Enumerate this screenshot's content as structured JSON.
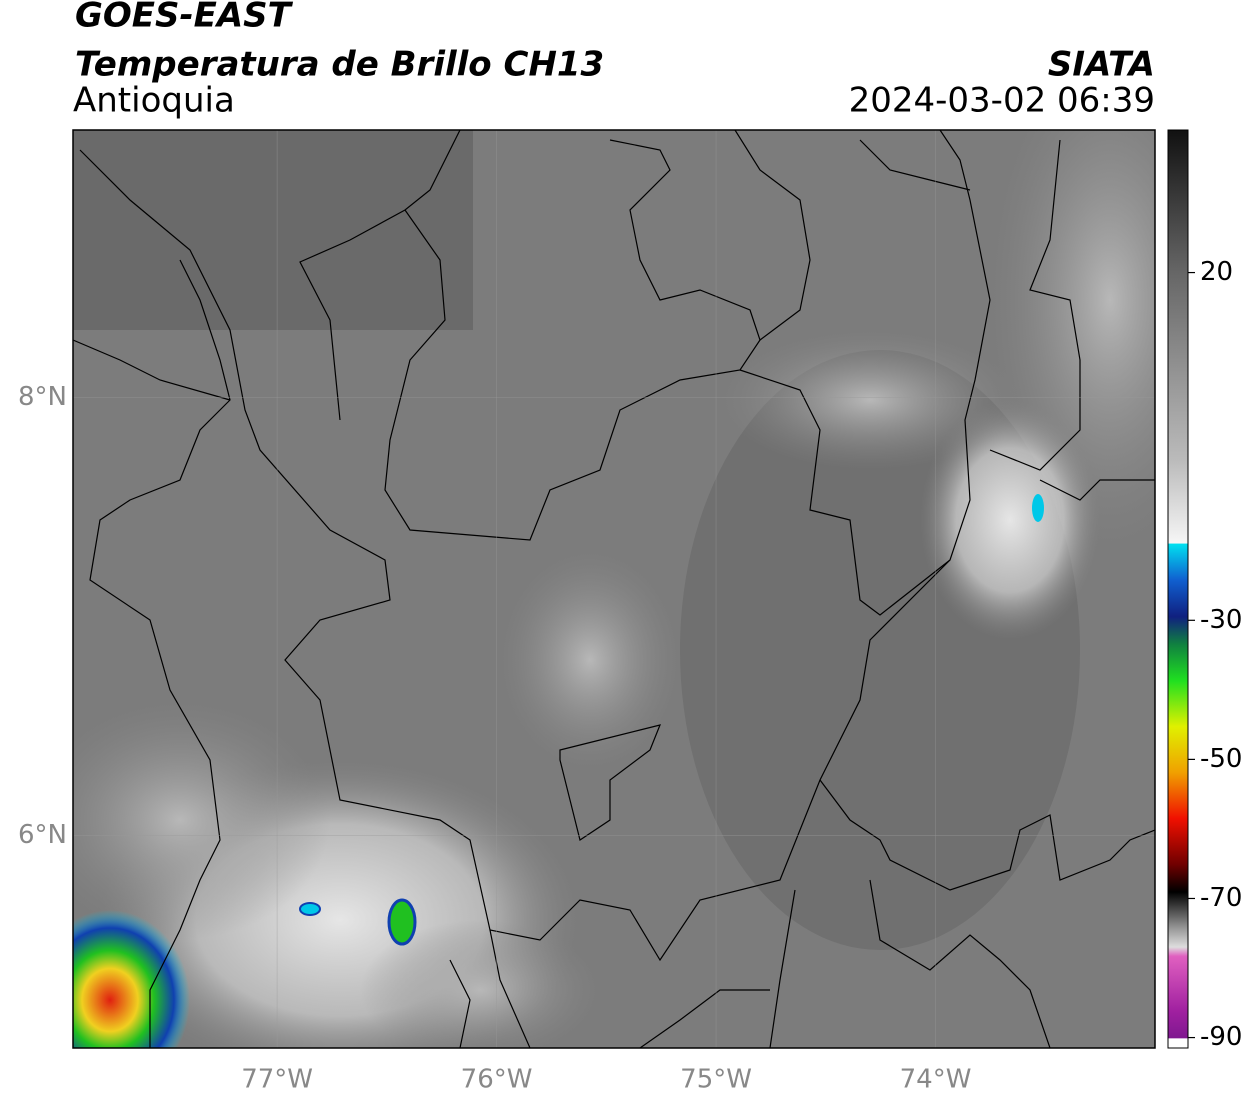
{
  "header": {
    "title": "GOES-EAST",
    "subtitle": "Temperatura de Brillo CH13",
    "region": "Antioquia",
    "source": "SIATA",
    "datetime": "2024-03-02 06:39"
  },
  "map": {
    "type": "map",
    "xlim": [
      -77.93,
      -73.0
    ],
    "ylim": [
      5.03,
      9.22
    ],
    "xticks": [
      {
        "value": -77,
        "label": "77°W"
      },
      {
        "value": -76,
        "label": "76°W"
      },
      {
        "value": -75,
        "label": "75°W"
      },
      {
        "value": -74,
        "label": "74°W"
      }
    ],
    "yticks": [
      {
        "value": 8,
        "label": "8°N"
      },
      {
        "value": 6,
        "label": "6°N"
      }
    ],
    "grid": true
  },
  "colorbar": {
    "lim": [
      -91.5,
      40.5
    ],
    "ticks": [
      20,
      -30,
      -50,
      -70,
      -90
    ]
  }
}
